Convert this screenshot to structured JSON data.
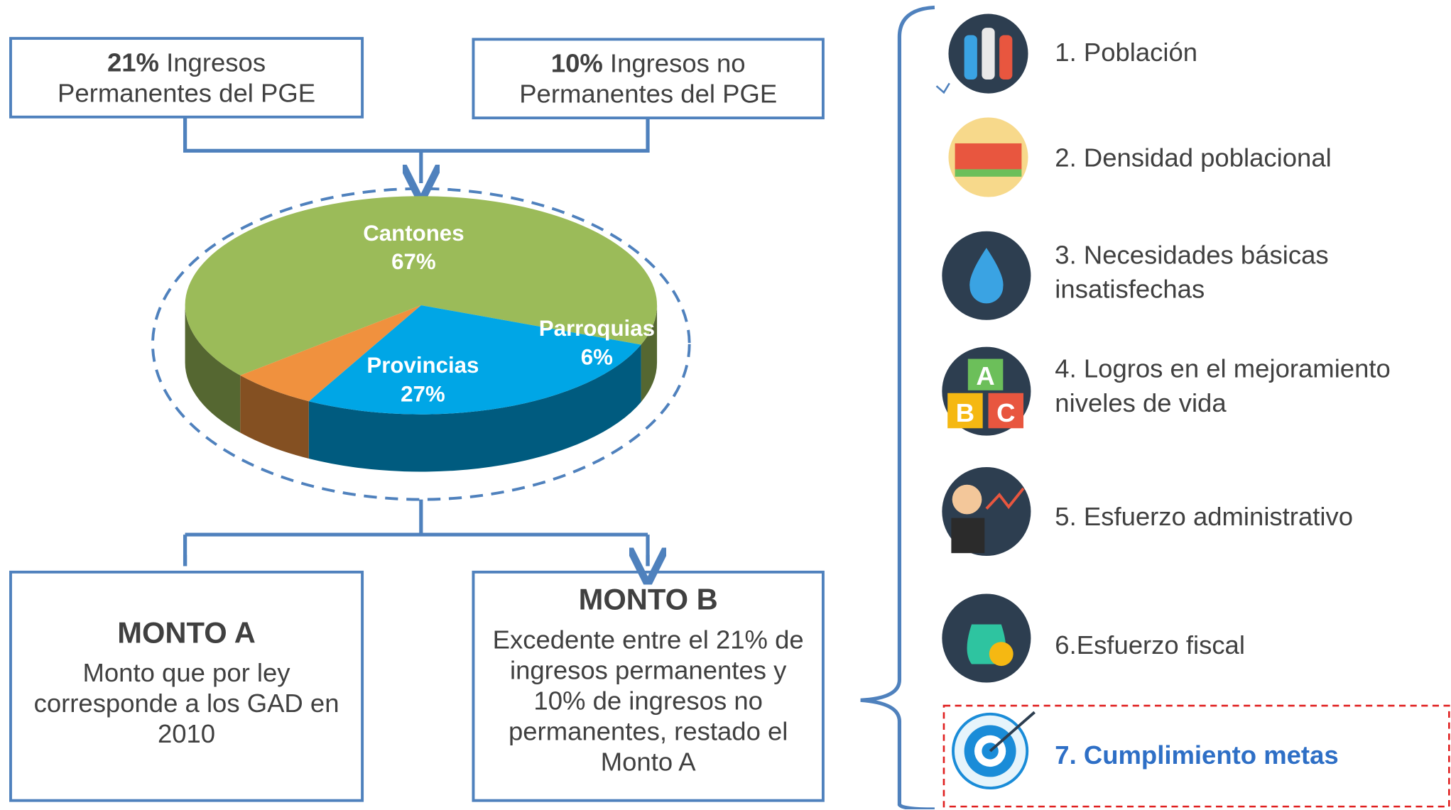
{
  "sources": [
    {
      "bold": "21%",
      "text": "Ingresos Permanentes del PGE"
    },
    {
      "bold": "10%",
      "text": "Ingresos no Permanentes del PGE"
    }
  ],
  "pie": {
    "type": "pie",
    "categories": [
      "Cantones",
      "Provincias",
      "Parroquias"
    ],
    "values": [
      67,
      27,
      6
    ],
    "value_labels": [
      "67%",
      "27%",
      "6%"
    ],
    "colors": [
      "#9bbb59",
      "#00a6e6",
      "#f0913e"
    ]
  },
  "amounts": [
    {
      "title": "MONTO A",
      "text": "Monto que por ley corresponde a los GAD en 2010"
    },
    {
      "title": "MONTO B",
      "text": "Excedente entre el 21% de ingresos permanentes y 10% de ingresos no permanentes, restado el Monto A"
    }
  ],
  "criteria": [
    "1. Población",
    "2. Densidad poblacional",
    "3. Necesidades básicas insatisfechas",
    "4. Logros en el mejoramiento niveles de vida",
    "5. Esfuerzo administrativo",
    "6.Esfuerzo fiscal",
    "7. Cumplimiento metas"
  ]
}
